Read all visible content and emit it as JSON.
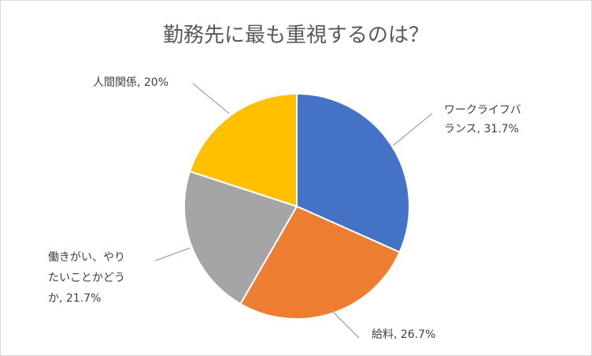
{
  "chart_data": {
    "type": "pie",
    "title": "勤務先に最も重視するのは？",
    "categories": [
      "ワークライフバランス",
      "給料",
      "働きがい、やりたいことかどうか",
      "人間関係"
    ],
    "values": [
      31.7,
      26.7,
      21.7,
      20
    ],
    "colors": [
      "#4472C4",
      "#ED7D31",
      "#A5A5A5",
      "#FFC000"
    ],
    "data_labels": [
      [
        "ワークライフバ",
        "ランス, 31.7%"
      ],
      [
        "給料, 26.7%"
      ],
      [
        "働きがい、やり",
        "たいことかどう",
        "か, 21.7%"
      ],
      [
        "人間関係, 20%"
      ]
    ],
    "legend": "none"
  }
}
